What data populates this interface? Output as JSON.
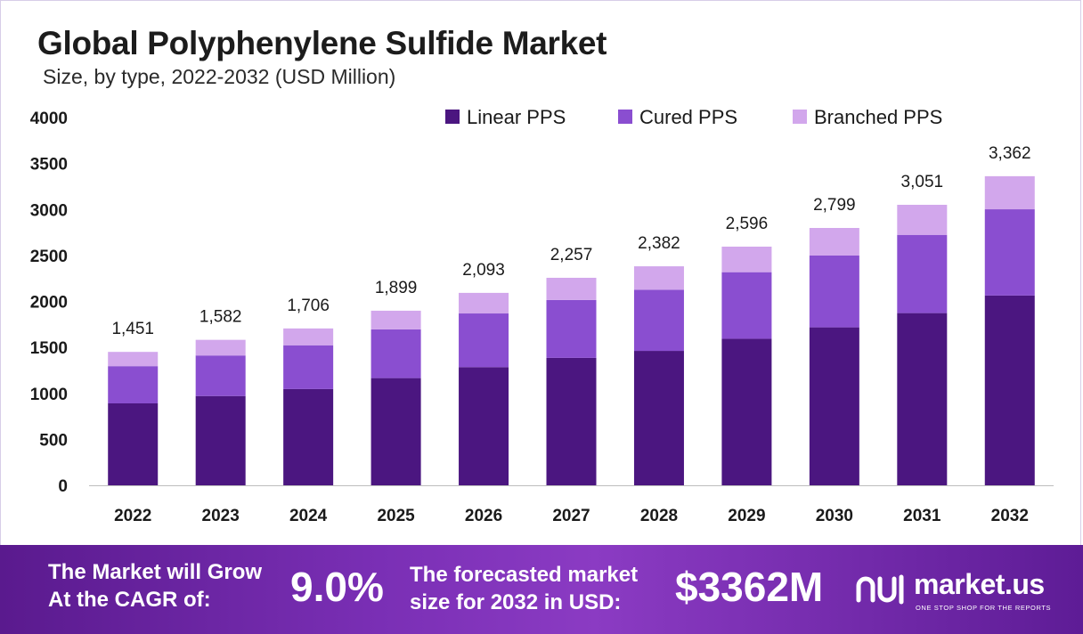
{
  "header": {
    "title": "Global Polyphenylene Sulfide Market",
    "subtitle": "Size, by type, 2022-2032 (USD Million)"
  },
  "chart_data": {
    "type": "bar",
    "stacked": true,
    "categories": [
      "2022",
      "2023",
      "2024",
      "2025",
      "2026",
      "2027",
      "2028",
      "2029",
      "2030",
      "2031",
      "2032"
    ],
    "series": [
      {
        "name": "Linear PPS",
        "color": "#4b1680",
        "values": [
          891,
          971,
          1047,
          1166,
          1285,
          1386,
          1462,
          1594,
          1718,
          1873,
          2064
        ]
      },
      {
        "name": "Cured PPS",
        "color": "#8a4ed0",
        "values": [
          405,
          441,
          476,
          530,
          584,
          630,
          665,
          724,
          781,
          851,
          938
        ]
      },
      {
        "name": "Branched PPS",
        "color": "#d2a7ec",
        "values": [
          155,
          170,
          183,
          203,
          224,
          241,
          255,
          278,
          300,
          327,
          360
        ]
      }
    ],
    "totals": [
      "1,451",
      "1,582",
      "1,706",
      "1,899",
      "2,093",
      "2,257",
      "2,382",
      "2,596",
      "2,799",
      "3,051",
      "3,362"
    ],
    "ylim": [
      0,
      4000
    ],
    "yticks": [
      0,
      500,
      1000,
      1500,
      2000,
      2500,
      3000,
      3500,
      4000
    ],
    "grid": false,
    "legend_position": "top-right"
  },
  "footer": {
    "cagr_line1": "The Market will Grow",
    "cagr_line2": "At the CAGR of:",
    "cagr_value": "9.0%",
    "size_line1": "The forecasted market",
    "size_line2": "size for 2032 in USD:",
    "size_value": "$3362M",
    "brand_icon": "market-us-logo-icon",
    "brand_name": "market.us",
    "brand_tagline": "ONE STOP SHOP FOR THE REPORTS"
  }
}
